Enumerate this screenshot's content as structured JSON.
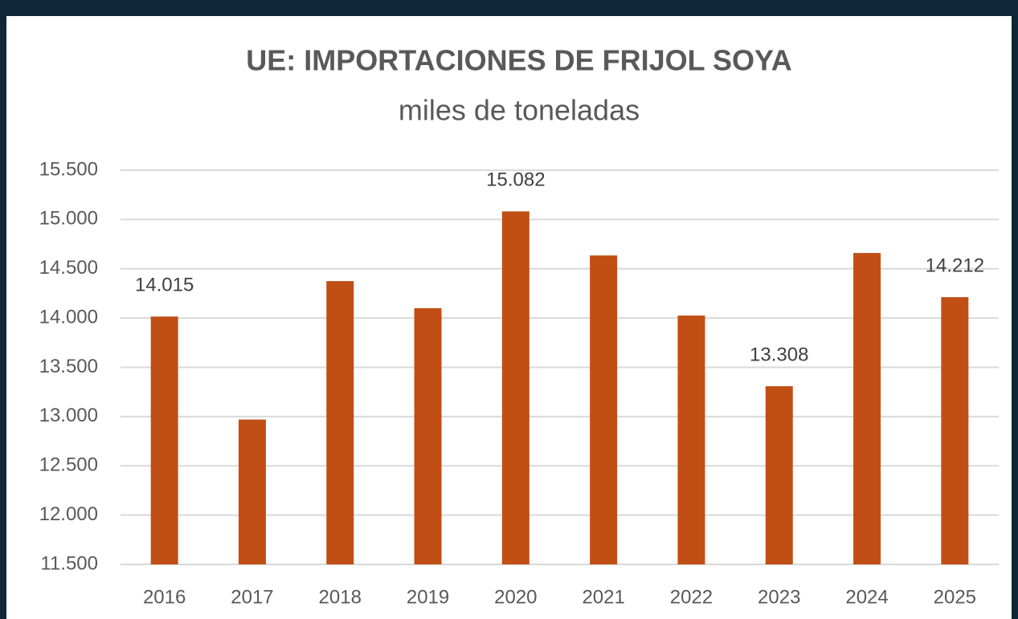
{
  "chart_data": {
    "type": "bar",
    "title": "UE: IMPORTACIONES DE FRIJOL SOYA",
    "subtitle": "miles de toneladas",
    "categories": [
      "2016",
      "2017",
      "2018",
      "2019",
      "2020",
      "2021",
      "2022",
      "2023",
      "2024",
      "2025"
    ],
    "values": [
      14015,
      12970,
      14375,
      14100,
      15082,
      14635,
      14025,
      13308,
      14660,
      14212
    ],
    "value_labels": [
      "14.015",
      null,
      null,
      null,
      "15.082",
      null,
      null,
      "13.308",
      null,
      "14.212"
    ],
    "color": "#c14f15",
    "ylim": [
      11500,
      15500
    ],
    "yticks": [
      {
        "value": 11500,
        "label": "11.500"
      },
      {
        "value": 12000,
        "label": "12.000"
      },
      {
        "value": 12500,
        "label": "12.500"
      },
      {
        "value": 13000,
        "label": "13.000"
      },
      {
        "value": 13500,
        "label": "13.500"
      },
      {
        "value": 14000,
        "label": "14.000"
      },
      {
        "value": 14500,
        "label": "14.500"
      },
      {
        "value": 15000,
        "label": "15.000"
      },
      {
        "value": 15500,
        "label": "15.500"
      }
    ],
    "grid": true
  }
}
